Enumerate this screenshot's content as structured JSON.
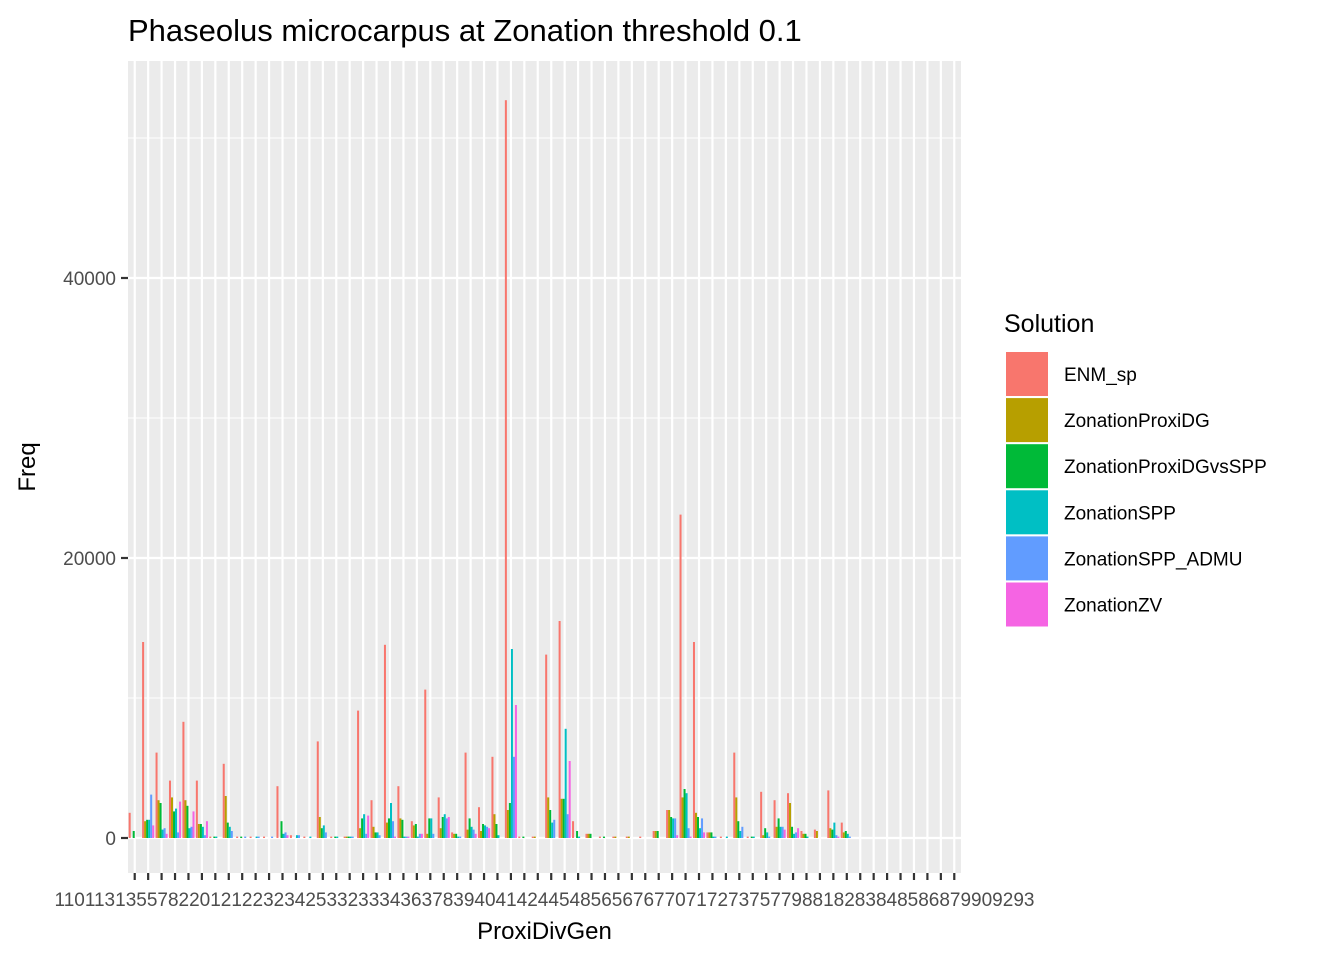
{
  "chart_data": {
    "type": "bar",
    "title": "Phaseolus microcarpus at Zonation threshold 0.1",
    "xlabel": "ProxiDivGen",
    "ylabel": "Freq",
    "ylim": [
      -2500,
      55500
    ],
    "y_ticks": [
      0,
      20000,
      40000
    ],
    "y_tick_labels": [
      "0",
      "20000",
      "40000"
    ],
    "x_tick_text": "110113135578220121223234253323334363783940414244548565676770717273757798818283848586879909293",
    "grid": true,
    "legend_position": "right",
    "legend_title": "Solution",
    "series": [
      {
        "name": "ENM_sp",
        "color": "#F8766D"
      },
      {
        "name": "ZonationProxiDG",
        "color": "#B79F00"
      },
      {
        "name": "ZonationProxiDGvsSPP",
        "color": "#00BA38"
      },
      {
        "name": "ZonationSPP",
        "color": "#00BFC4"
      },
      {
        "name": "ZonationSPP_ADMU",
        "color": "#619CFF"
      },
      {
        "name": "ZonationZV",
        "color": "#F564E3"
      }
    ],
    "n_categories": 62,
    "bars": [
      [
        0,
        0,
        1800
      ],
      [
        0,
        2,
        500
      ],
      [
        1,
        0,
        14000
      ],
      [
        1,
        1,
        1200
      ],
      [
        1,
        2,
        1300
      ],
      [
        1,
        3,
        1300
      ],
      [
        1,
        4,
        3100
      ],
      [
        1,
        5,
        900
      ],
      [
        2,
        0,
        6100
      ],
      [
        2,
        1,
        2700
      ],
      [
        2,
        2,
        2500
      ],
      [
        2,
        3,
        600
      ],
      [
        2,
        4,
        700
      ],
      [
        2,
        5,
        300
      ],
      [
        3,
        0,
        4100
      ],
      [
        3,
        1,
        2900
      ],
      [
        3,
        2,
        1900
      ],
      [
        3,
        3,
        2100
      ],
      [
        3,
        4,
        400
      ],
      [
        3,
        5,
        2600
      ],
      [
        4,
        0,
        8300
      ],
      [
        4,
        1,
        2700
      ],
      [
        4,
        2,
        2300
      ],
      [
        4,
        3,
        700
      ],
      [
        4,
        4,
        800
      ],
      [
        4,
        5,
        1900
      ],
      [
        5,
        0,
        4100
      ],
      [
        5,
        1,
        1000
      ],
      [
        5,
        2,
        1000
      ],
      [
        5,
        3,
        800
      ],
      [
        5,
        4,
        200
      ],
      [
        5,
        5,
        1200
      ],
      [
        6,
        0,
        100
      ],
      [
        6,
        2,
        100
      ],
      [
        6,
        3,
        100
      ],
      [
        7,
        0,
        5300
      ],
      [
        7,
        1,
        3000
      ],
      [
        7,
        2,
        1100
      ],
      [
        7,
        3,
        800
      ],
      [
        7,
        4,
        500
      ],
      [
        8,
        0,
        100
      ],
      [
        8,
        2,
        100
      ],
      [
        8,
        4,
        100
      ],
      [
        9,
        0,
        100
      ],
      [
        9,
        3,
        100
      ],
      [
        9,
        4,
        100
      ],
      [
        10,
        0,
        100
      ],
      [
        10,
        4,
        100
      ],
      [
        11,
        0,
        3700
      ],
      [
        11,
        2,
        1200
      ],
      [
        11,
        3,
        300
      ],
      [
        11,
        4,
        400
      ],
      [
        11,
        5,
        200
      ],
      [
        12,
        0,
        200
      ],
      [
        12,
        3,
        200
      ],
      [
        12,
        4,
        200
      ],
      [
        13,
        0,
        100
      ],
      [
        13,
        3,
        100
      ],
      [
        14,
        0,
        6900
      ],
      [
        14,
        1,
        1500
      ],
      [
        14,
        2,
        700
      ],
      [
        14,
        3,
        900
      ],
      [
        14,
        4,
        400
      ],
      [
        15,
        0,
        100
      ],
      [
        15,
        2,
        100
      ],
      [
        15,
        3,
        100
      ],
      [
        16,
        0,
        100
      ],
      [
        16,
        1,
        100
      ],
      [
        16,
        2,
        100
      ],
      [
        16,
        3,
        100
      ],
      [
        16,
        4,
        100
      ],
      [
        17,
        0,
        9100
      ],
      [
        17,
        1,
        700
      ],
      [
        17,
        2,
        1400
      ],
      [
        17,
        3,
        1700
      ],
      [
        17,
        4,
        300
      ],
      [
        17,
        5,
        1600
      ],
      [
        18,
        0,
        2700
      ],
      [
        18,
        1,
        800
      ],
      [
        18,
        2,
        400
      ],
      [
        18,
        3,
        400
      ],
      [
        18,
        4,
        200
      ],
      [
        19,
        0,
        13800
      ],
      [
        19,
        1,
        1100
      ],
      [
        19,
        2,
        1400
      ],
      [
        19,
        3,
        2500
      ],
      [
        19,
        4,
        1200
      ],
      [
        19,
        5,
        100
      ],
      [
        20,
        0,
        3700
      ],
      [
        20,
        1,
        1400
      ],
      [
        20,
        2,
        1300
      ],
      [
        20,
        3,
        100
      ],
      [
        20,
        4,
        100
      ],
      [
        20,
        5,
        100
      ],
      [
        21,
        0,
        1200
      ],
      [
        21,
        1,
        900
      ],
      [
        21,
        2,
        1000
      ],
      [
        21,
        3,
        100
      ],
      [
        21,
        4,
        300
      ],
      [
        21,
        5,
        300
      ],
      [
        22,
        0,
        10600
      ],
      [
        22,
        1,
        300
      ],
      [
        22,
        2,
        1400
      ],
      [
        22,
        3,
        1400
      ],
      [
        22,
        4,
        300
      ],
      [
        23,
        0,
        2900
      ],
      [
        23,
        1,
        700
      ],
      [
        23,
        2,
        1500
      ],
      [
        23,
        3,
        1700
      ],
      [
        23,
        4,
        1400
      ],
      [
        23,
        5,
        1500
      ],
      [
        24,
        0,
        400
      ],
      [
        24,
        1,
        300
      ],
      [
        24,
        2,
        300
      ],
      [
        24,
        3,
        100
      ],
      [
        24,
        4,
        100
      ],
      [
        25,
        0,
        6100
      ],
      [
        25,
        1,
        600
      ],
      [
        25,
        2,
        1400
      ],
      [
        25,
        3,
        800
      ],
      [
        25,
        4,
        600
      ],
      [
        25,
        5,
        300
      ],
      [
        26,
        0,
        2200
      ],
      [
        26,
        1,
        500
      ],
      [
        26,
        2,
        1000
      ],
      [
        26,
        3,
        900
      ],
      [
        26,
        4,
        800
      ],
      [
        26,
        5,
        700
      ],
      [
        27,
        0,
        5800
      ],
      [
        27,
        1,
        1700
      ],
      [
        27,
        2,
        1000
      ],
      [
        27,
        3,
        200
      ],
      [
        28,
        0,
        52700
      ],
      [
        28,
        1,
        2000
      ],
      [
        28,
        2,
        2500
      ],
      [
        28,
        3,
        13500
      ],
      [
        28,
        4,
        5800
      ],
      [
        28,
        5,
        9500
      ],
      [
        29,
        0,
        100
      ],
      [
        29,
        2,
        100
      ],
      [
        30,
        0,
        100
      ],
      [
        30,
        1,
        100
      ],
      [
        31,
        0,
        13100
      ],
      [
        31,
        1,
        2900
      ],
      [
        31,
        2,
        2000
      ],
      [
        31,
        3,
        1100
      ],
      [
        31,
        4,
        1300
      ],
      [
        32,
        0,
        15500
      ],
      [
        32,
        1,
        2800
      ],
      [
        32,
        2,
        2800
      ],
      [
        32,
        3,
        7800
      ],
      [
        32,
        4,
        1700
      ],
      [
        32,
        5,
        5500
      ],
      [
        33,
        0,
        1200
      ],
      [
        33,
        2,
        500
      ],
      [
        33,
        3,
        100
      ],
      [
        34,
        0,
        300
      ],
      [
        34,
        1,
        300
      ],
      [
        34,
        2,
        300
      ],
      [
        35,
        0,
        100
      ],
      [
        35,
        2,
        100
      ],
      [
        36,
        0,
        100
      ],
      [
        36,
        1,
        100
      ],
      [
        37,
        0,
        100
      ],
      [
        37,
        1,
        100
      ],
      [
        38,
        0,
        100
      ],
      [
        39,
        0,
        500
      ],
      [
        39,
        1,
        500
      ],
      [
        39,
        2,
        500
      ],
      [
        40,
        0,
        2000
      ],
      [
        40,
        1,
        2000
      ],
      [
        40,
        2,
        1500
      ],
      [
        40,
        3,
        1400
      ],
      [
        40,
        4,
        1400
      ],
      [
        40,
        5,
        200
      ],
      [
        41,
        0,
        23100
      ],
      [
        41,
        1,
        2900
      ],
      [
        41,
        2,
        3500
      ],
      [
        41,
        3,
        3200
      ],
      [
        41,
        4,
        700
      ],
      [
        41,
        5,
        100
      ],
      [
        42,
        0,
        14000
      ],
      [
        42,
        1,
        1800
      ],
      [
        42,
        2,
        1500
      ],
      [
        42,
        3,
        700
      ],
      [
        42,
        4,
        1400
      ],
      [
        42,
        5,
        400
      ],
      [
        43,
        0,
        400
      ],
      [
        43,
        1,
        400
      ],
      [
        43,
        2,
        400
      ],
      [
        43,
        3,
        100
      ],
      [
        43,
        4,
        100
      ],
      [
        44,
        0,
        100
      ],
      [
        44,
        3,
        100
      ],
      [
        45,
        0,
        6100
      ],
      [
        45,
        1,
        2900
      ],
      [
        45,
        2,
        1200
      ],
      [
        45,
        3,
        500
      ],
      [
        45,
        4,
        800
      ],
      [
        46,
        0,
        100
      ],
      [
        46,
        2,
        100
      ],
      [
        46,
        3,
        100
      ],
      [
        47,
        0,
        3300
      ],
      [
        47,
        1,
        200
      ],
      [
        47,
        2,
        700
      ],
      [
        47,
        3,
        400
      ],
      [
        47,
        4,
        100
      ],
      [
        48,
        0,
        2700
      ],
      [
        48,
        1,
        800
      ],
      [
        48,
        2,
        1400
      ],
      [
        48,
        3,
        800
      ],
      [
        48,
        4,
        800
      ],
      [
        48,
        5,
        600
      ],
      [
        49,
        0,
        3200
      ],
      [
        49,
        1,
        2500
      ],
      [
        49,
        2,
        800
      ],
      [
        49,
        3,
        300
      ],
      [
        49,
        4,
        400
      ],
      [
        49,
        5,
        700
      ],
      [
        50,
        0,
        500
      ],
      [
        50,
        1,
        300
      ],
      [
        50,
        2,
        300
      ],
      [
        50,
        3,
        100
      ],
      [
        51,
        0,
        600
      ],
      [
        51,
        1,
        500
      ],
      [
        52,
        0,
        3400
      ],
      [
        52,
        1,
        700
      ],
      [
        52,
        2,
        600
      ],
      [
        52,
        3,
        1100
      ],
      [
        52,
        4,
        200
      ],
      [
        52,
        5,
        100
      ],
      [
        53,
        0,
        1100
      ],
      [
        53,
        1,
        400
      ],
      [
        53,
        2,
        500
      ],
      [
        53,
        3,
        300
      ],
      [
        53,
        4,
        100
      ]
    ]
  }
}
